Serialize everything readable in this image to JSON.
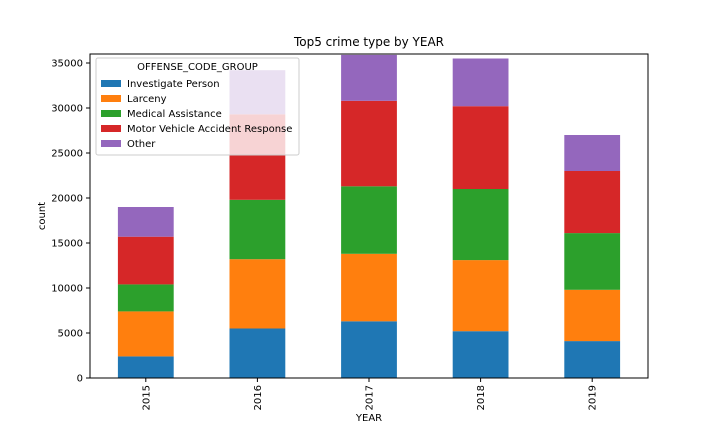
{
  "chart_data": {
    "type": "bar",
    "stacked": true,
    "title": "Top5 crime type by YEAR",
    "xlabel": "YEAR",
    "ylabel": "count",
    "categories": [
      "2015",
      "2016",
      "2017",
      "2018",
      "2019"
    ],
    "ylim": [
      0,
      36000
    ],
    "yticks": [
      0,
      5000,
      10000,
      15000,
      20000,
      25000,
      30000,
      35000
    ],
    "grid": false,
    "legend": {
      "title": "OFFENSE_CODE_GROUP",
      "placement": "top-left"
    },
    "series": [
      {
        "name": "Investigate Person",
        "color": "#1f77b4",
        "values": [
          2400,
          5500,
          6300,
          5200,
          4100
        ]
      },
      {
        "name": "Larceny",
        "color": "#ff7f0e",
        "values": [
          5000,
          7700,
          7500,
          7900,
          5700
        ]
      },
      {
        "name": "Medical Assistance",
        "color": "#2ca02c",
        "values": [
          3000,
          6600,
          7500,
          7900,
          6300
        ]
      },
      {
        "name": "Motor Vehicle Accident Response",
        "color": "#d62728",
        "values": [
          5300,
          9500,
          9500,
          9200,
          6900
        ]
      },
      {
        "name": "Other",
        "color": "#9467bd",
        "values": [
          3300,
          4900,
          5100,
          5300,
          4000
        ]
      }
    ]
  }
}
